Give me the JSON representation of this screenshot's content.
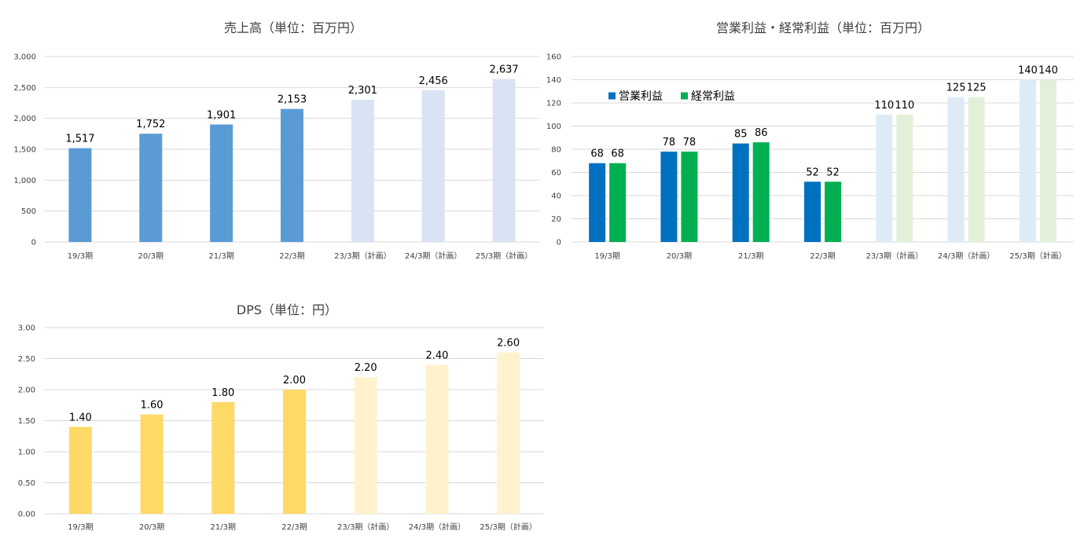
{
  "chart_data": [
    {
      "type": "bar",
      "title": "売上高（単位：百万円）",
      "categories": [
        "19/3期",
        "20/3期",
        "21/3期",
        "22/3期",
        "23/3期（計画）",
        "24/3期（計画）",
        "25/3期（計画）"
      ],
      "ytick_labels": [
        "0",
        "500",
        "1,000",
        "1,500",
        "2,000",
        "2,500",
        "3,000"
      ],
      "ylim": [
        0,
        3000
      ],
      "grid": true,
      "series": [
        {
          "values": [
            1517,
            1752,
            1901,
            2153,
            2301,
            2456,
            2637
          ],
          "labels": [
            "1,517",
            "1,752",
            "1,901",
            "2,153",
            "2,301",
            "2,456",
            "2,637"
          ],
          "colors": [
            "#5b9bd5",
            "#5b9bd5",
            "#5b9bd5",
            "#5b9bd5",
            "#dae3f3",
            "#dae3f3",
            "#dae3f3"
          ]
        }
      ]
    },
    {
      "type": "bar",
      "title": "営業利益・経常利益（単位：百万円）",
      "categories": [
        "19/3期",
        "20/3期",
        "21/3期",
        "22/3期",
        "23/3期（計画）",
        "24/3期（計画）",
        "25/3期（計画）"
      ],
      "ytick_labels": [
        "0",
        "20",
        "40",
        "60",
        "80",
        "100",
        "120",
        "140",
        "160"
      ],
      "ylim": [
        0,
        160
      ],
      "grid": true,
      "legend": "top-left",
      "series": [
        {
          "name": "営業利益",
          "values": [
            68,
            78,
            85,
            52,
            110,
            125,
            140
          ],
          "labels": [
            "68",
            "78",
            "85",
            "52",
            "110",
            "125",
            "140"
          ],
          "legend_color": "#0070c0",
          "colors": [
            "#0070c0",
            "#0070c0",
            "#0070c0",
            "#0070c0",
            "#deebf7",
            "#deebf7",
            "#deebf7"
          ]
        },
        {
          "name": "経常利益",
          "values": [
            68,
            78,
            86,
            52,
            110,
            125,
            140
          ],
          "labels": [
            "68",
            "78",
            "86",
            "52",
            "110",
            "125",
            "140"
          ],
          "legend_color": "#00b050",
          "colors": [
            "#00b050",
            "#00b050",
            "#00b050",
            "#00b050",
            "#e2f0d9",
            "#e2f0d9",
            "#e2f0d9"
          ]
        }
      ]
    },
    {
      "type": "bar",
      "title": "DPS（単位：円）",
      "categories": [
        "19/3期",
        "20/3期",
        "21/3期",
        "22/3期",
        "23/3期（計画）",
        "24/3期（計画）",
        "25/3期（計画）"
      ],
      "ytick_labels": [
        "0.00",
        "0.50",
        "1.00",
        "1.50",
        "2.00",
        "2.50",
        "3.00"
      ],
      "ylim": [
        0,
        3
      ],
      "grid": true,
      "series": [
        {
          "values": [
            1.4,
            1.6,
            1.8,
            2.0,
            2.2,
            2.4,
            2.6
          ],
          "labels": [
            "1.40",
            "1.60",
            "1.80",
            "2.00",
            "2.20",
            "2.40",
            "2.60"
          ],
          "colors": [
            "#ffd966",
            "#ffd966",
            "#ffd966",
            "#ffd966",
            "#fff2cc",
            "#fff2cc",
            "#fff2cc"
          ]
        }
      ]
    }
  ]
}
